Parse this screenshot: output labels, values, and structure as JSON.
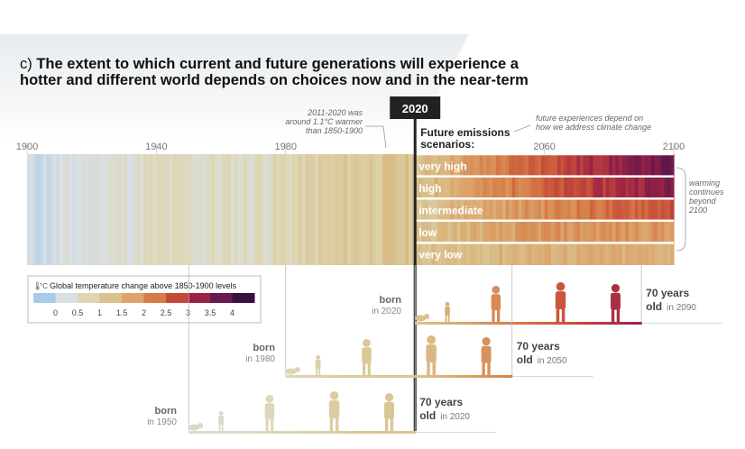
{
  "title": {
    "label": "c)",
    "line1": "The extent to which current and future generations will experience a",
    "line2": "hotter and different world depends on choices now and in the near-term"
  },
  "chart_data": {
    "type": "heatmap",
    "x_axis": {
      "range": [
        1900,
        2100
      ],
      "tick_labels": [
        "1900",
        "1940",
        "1980",
        "2060",
        "2100"
      ],
      "ticks": [
        1900,
        1940,
        1980,
        2060,
        2100
      ]
    },
    "present_year": "2020",
    "annotations": {
      "historical": [
        "2011-2020 was",
        "around 1.1°C warmer",
        "than 1850-1900"
      ],
      "future": [
        "future experiences depend on",
        "how we address climate change"
      ],
      "warming": [
        "warming",
        "continues",
        "beyond",
        "2100"
      ]
    },
    "scenarios_title": [
      "Future emissions",
      "scenarios:"
    ],
    "scenarios": [
      {
        "name": "very high",
        "warming_2100": 4.0
      },
      {
        "name": "high",
        "warming_2100": 3.7
      },
      {
        "name": "intermediate",
        "warming_2100": 2.8
      },
      {
        "name": "low",
        "warming_2100": 1.9
      },
      {
        "name": "very low",
        "warming_2100": 1.5
      }
    ],
    "historical_warming_samples": [
      {
        "year": 1900,
        "value": -0.1
      },
      {
        "year": 1910,
        "value": 0.0
      },
      {
        "year": 1920,
        "value": 0.2
      },
      {
        "year": 1930,
        "value": 0.3
      },
      {
        "year": 1940,
        "value": 0.45
      },
      {
        "year": 1950,
        "value": 0.4
      },
      {
        "year": 1960,
        "value": 0.4
      },
      {
        "year": 1970,
        "value": 0.45
      },
      {
        "year": 1980,
        "value": 0.6
      },
      {
        "year": 1990,
        "value": 0.8
      },
      {
        "year": 2000,
        "value": 0.95
      },
      {
        "year": 2010,
        "value": 1.05
      },
      {
        "year": 2020,
        "value": 1.1
      }
    ],
    "legend": {
      "title": "Global temperature change above 1850-1900 levels",
      "tick_labels": [
        "0",
        "0.5",
        "1",
        "1.5",
        "2",
        "2.5",
        "3",
        "3.5",
        "4"
      ],
      "colors": [
        "#a9cbe8",
        "#d9e0e6",
        "#ded6b3",
        "#d9c28e",
        "#dca36a",
        "#d67b45",
        "#c4493a",
        "#9a2244",
        "#6a1a4e",
        "#3a1040"
      ]
    },
    "generations": [
      {
        "born_label": "born",
        "born_year": "in 2020",
        "age_label": "70 years",
        "old_label": "old",
        "old_year": "in 2090"
      },
      {
        "born_label": "born",
        "born_year": "in 1980",
        "age_label": "70 years",
        "old_label": "old",
        "old_year": "in 2050"
      },
      {
        "born_label": "born",
        "born_year": "in 1950",
        "age_label": "70 years",
        "old_label": "old",
        "old_year": "in 2020"
      }
    ]
  }
}
